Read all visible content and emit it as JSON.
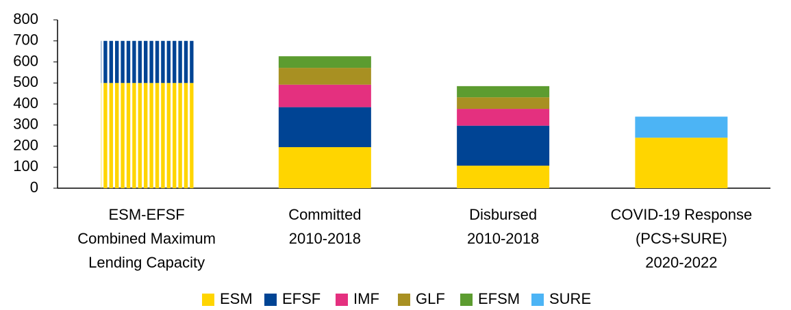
{
  "chart_data": {
    "type": "stacked-bar",
    "categories": [
      [
        "ESM-EFSF",
        "Combined Maximum",
        "Lending Capacity"
      ],
      [
        "Committed",
        "2010-2018"
      ],
      [
        "Disbursed",
        "2010-2018"
      ],
      [
        "COVID-19 Response",
        "(PCS+SURE)",
        "2020-2022"
      ]
    ],
    "series": [
      {
        "name": "ESM",
        "color": "#ffd500",
        "values": [
          500,
          195,
          107,
          240
        ]
      },
      {
        "name": "EFSF",
        "color": "#004494",
        "values": [
          200,
          190,
          190,
          null
        ]
      },
      {
        "name": "IMF",
        "color": "#e4307f",
        "values": [
          null,
          107,
          80,
          null
        ]
      },
      {
        "name": "GLF",
        "color": "#a89022",
        "values": [
          null,
          80,
          55,
          null
        ]
      },
      {
        "name": "EFSM",
        "color": "#5c9c30",
        "values": [
          null,
          55,
          53,
          null
        ]
      },
      {
        "name": "SURE",
        "color": "#4cb4f5",
        "values": [
          null,
          null,
          null,
          100
        ]
      }
    ],
    "striped": [
      true,
      false,
      false,
      false
    ],
    "ylim": [
      0,
      800
    ],
    "yticks": [
      0,
      100,
      200,
      300,
      400,
      500,
      600,
      700,
      800
    ],
    "legend": "bottom"
  }
}
